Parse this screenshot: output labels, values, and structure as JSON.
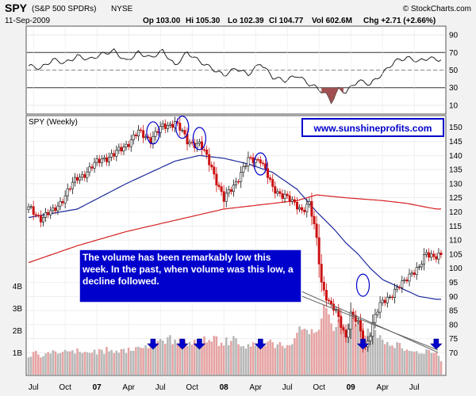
{
  "chart_data": {
    "type": "candlestick",
    "title": "SPY",
    "subtitle": "(S&P 500 SPDRs)",
    "exchange": "NYSE",
    "date": "11-Sep-2009",
    "quote": {
      "open": "Op 103.00",
      "high": "Hi 105.30",
      "low": "Lo 102.39",
      "close": "Cl 104.77",
      "volume": "Vol 602.6M",
      "change": "Chg +2.71 (+2.66%)"
    },
    "credit": "© StockCharts.com",
    "panel_label": "SPY (Weekly)",
    "website": "www.sunshineprofits.com",
    "annotation": "The volume has been remarkably low this week. In the past, when volume was this low, a decline followed.",
    "colors": {
      "rsi_line": "#222222",
      "ma_short": "#1c2a9c",
      "ma_long": "#d62020",
      "up": "#111111",
      "down": "#cc1111",
      "vol_up": "#b8b8b8",
      "vol_down": "#e6a3a3",
      "accent": "#0000cc",
      "annotation_bg": "#0000cc"
    },
    "x_tick_labels": [
      "Jul",
      "Oct",
      "07",
      "Apr",
      "Jul",
      "Oct",
      "08",
      "Apr",
      "Jul",
      "Oct",
      "09",
      "Apr",
      "Jul"
    ],
    "x_tick_bold": [
      false,
      false,
      true,
      false,
      false,
      false,
      true,
      false,
      false,
      false,
      true,
      false,
      false
    ],
    "x_tick_index": [
      2,
      15,
      28,
      41,
      54,
      67,
      80,
      93,
      106,
      119,
      132,
      145,
      158
    ],
    "rsi": {
      "ylim": [
        0,
        100
      ],
      "ticks": [
        10,
        30,
        50,
        70,
        90
      ],
      "overbought": 70,
      "oversold": 30,
      "midline": 50,
      "points": [
        [
          0,
          55
        ],
        [
          5,
          52
        ],
        [
          10,
          62
        ],
        [
          15,
          58
        ],
        [
          20,
          66
        ],
        [
          25,
          62
        ],
        [
          30,
          68
        ],
        [
          35,
          72
        ],
        [
          40,
          60
        ],
        [
          45,
          70
        ],
        [
          50,
          64
        ],
        [
          55,
          72
        ],
        [
          60,
          55
        ],
        [
          65,
          70
        ],
        [
          70,
          60
        ],
        [
          75,
          52
        ],
        [
          80,
          44
        ],
        [
          85,
          52
        ],
        [
          90,
          45
        ],
        [
          95,
          58
        ],
        [
          100,
          42
        ],
        [
          105,
          38
        ],
        [
          110,
          44
        ],
        [
          115,
          34
        ],
        [
          118,
          30
        ],
        [
          122,
          22
        ],
        [
          124,
          14
        ],
        [
          127,
          28
        ],
        [
          130,
          25
        ],
        [
          135,
          38
        ],
        [
          140,
          34
        ],
        [
          145,
          46
        ],
        [
          150,
          60
        ],
        [
          155,
          64
        ],
        [
          160,
          60
        ],
        [
          164,
          64
        ],
        [
          167,
          62
        ]
      ]
    },
    "price": {
      "ylim": [
        62,
        153
      ],
      "ticks": [
        70,
        75,
        80,
        85,
        90,
        95,
        100,
        105,
        110,
        115,
        120,
        125,
        130,
        135,
        140,
        145,
        150
      ],
      "path": [
        [
          0,
          121
        ],
        [
          5,
          118
        ],
        [
          10,
          120
        ],
        [
          15,
          126
        ],
        [
          20,
          132
        ],
        [
          25,
          135
        ],
        [
          30,
          139
        ],
        [
          35,
          140
        ],
        [
          40,
          144
        ],
        [
          45,
          148
        ],
        [
          50,
          146
        ],
        [
          55,
          150
        ],
        [
          60,
          152
        ],
        [
          65,
          145
        ],
        [
          70,
          144
        ],
        [
          75,
          136
        ],
        [
          80,
          124
        ],
        [
          85,
          131
        ],
        [
          90,
          138
        ],
        [
          95,
          139
        ],
        [
          100,
          128
        ],
        [
          105,
          126
        ],
        [
          108,
          123
        ],
        [
          112,
          121
        ],
        [
          115,
          123
        ],
        [
          118,
          110
        ],
        [
          120,
          95
        ],
        [
          123,
          88
        ],
        [
          126,
          84
        ],
        [
          130,
          76
        ],
        [
          132,
          84
        ],
        [
          135,
          80
        ],
        [
          137,
          74
        ],
        [
          138,
          72
        ],
        [
          142,
          83
        ],
        [
          145,
          88
        ],
        [
          150,
          92
        ],
        [
          153,
          94
        ],
        [
          157,
          99
        ],
        [
          160,
          100
        ],
        [
          163,
          105
        ],
        [
          167,
          104.77
        ]
      ],
      "ma_short": [
        [
          0,
          118
        ],
        [
          20,
          121
        ],
        [
          40,
          130
        ],
        [
          60,
          138
        ],
        [
          70,
          140
        ],
        [
          80,
          139
        ],
        [
          90,
          137
        ],
        [
          100,
          134
        ],
        [
          110,
          128
        ],
        [
          118,
          120
        ],
        [
          125,
          114
        ],
        [
          130,
          109
        ],
        [
          135,
          105
        ],
        [
          140,
          100
        ],
        [
          145,
          96
        ],
        [
          150,
          94
        ],
        [
          155,
          92
        ],
        [
          160,
          90
        ],
        [
          167,
          89
        ]
      ],
      "ma_long": [
        [
          0,
          102
        ],
        [
          20,
          108
        ],
        [
          40,
          113
        ],
        [
          60,
          117
        ],
        [
          80,
          121
        ],
        [
          100,
          123
        ],
        [
          110,
          124
        ],
        [
          118,
          126
        ],
        [
          130,
          125
        ],
        [
          145,
          124
        ],
        [
          155,
          123
        ],
        [
          167,
          121
        ]
      ],
      "circles": [
        {
          "i": 51,
          "v": 148
        },
        {
          "i": 63,
          "v": 150
        },
        {
          "i": 70,
          "v": 146
        },
        {
          "i": 95,
          "v": 137
        },
        {
          "i": 137,
          "v": 94
        }
      ]
    },
    "volume": {
      "axis_labels": [
        "1B",
        "2B",
        "3B",
        "4B"
      ],
      "axis_values": [
        1,
        2,
        3,
        4
      ],
      "arrow_indices": [
        51,
        63,
        70,
        95,
        137,
        167
      ],
      "values": [
        0.78,
        0.81,
        1.02,
        1.07,
        0.91,
        0.77,
        0.83,
        0.95,
        1.02,
        0.95,
        1.1,
        1.05,
        0.95,
        0.97,
        1.03,
        1.11,
        1.05,
        1.05,
        1.1,
        0.95,
        1.18,
        1.03,
        0.97,
        1.03,
        1.01,
        0.98,
        0.99,
        1.13,
        0.91,
        1.15,
        1.12,
        0.94,
        1.25,
        1.05,
        1.11,
        0.97,
        1.08,
        0.99,
        1.15,
        1.16,
        0.97,
        1.21,
        1.07,
        1.07,
        1.24,
        1.26,
        1.21,
        1.2,
        1.33,
        1.19,
        1.43,
        1.47,
        1.28,
        1.52,
        1.61,
        1.54,
        1.39,
        1.69,
        1.78,
        1.37,
        1.58,
        1.38,
        1.63,
        1.57,
        1.55,
        1.29,
        1.48,
        1.35,
        1.58,
        1.37,
        1.64,
        1.42,
        1.73,
        1.45,
        1.56,
        1.49,
        1.75,
        1.73,
        1.29,
        1.44,
        1.31,
        1.68,
        1.32,
        1.52,
        1.74,
        1.64,
        1.37,
        1.27,
        1.29,
        1.17,
        1.38,
        1.26,
        1.46,
        1.31,
        1.41,
        1.5,
        1.36,
        1.3,
        1.49,
        1.58,
        1.46,
        1.2,
        1.36,
        1.47,
        1.3,
        1.2,
        1.33,
        1.32,
        1.37,
        1.64,
        1.89,
        2.18,
        2.03,
        2.07,
        2.02,
        1.83,
        2.05,
        1.88,
        1.93,
        2.03,
        2.53,
        3.15,
        3.0,
        2.72,
        2.31,
        1.97,
        2.15,
        2.49,
        2.68,
        2.22,
        2.0,
        2.29,
        2.31,
        2.66,
        2.28,
        2.42,
        2.43,
        2.09,
        1.76,
        2.08,
        1.85,
        1.8,
        2.01,
        1.65,
        1.78,
        1.57,
        1.38,
        1.47,
        1.3,
        1.31,
        1.2,
        1.46,
        1.43,
        1.19,
        1.07,
        1.13,
        1.07,
        1.06,
        1.03,
        1.06,
        0.95,
        0.95,
        0.94,
        1.14,
        1.11,
        0.98,
        0.98,
        1.0,
        0.85,
        0.6
      ]
    }
  }
}
